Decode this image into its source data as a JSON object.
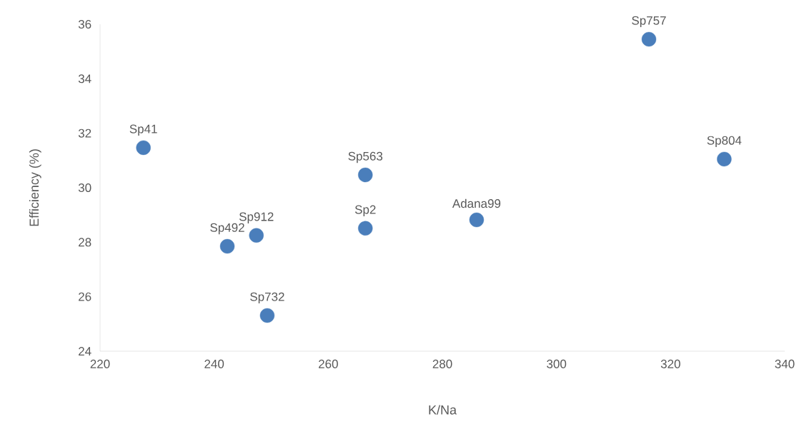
{
  "chart_data": {
    "type": "scatter",
    "xlabel": "K/Na",
    "ylabel": "Efficiency (%)",
    "x": [
      227.6,
      242.3,
      247.4,
      249.3,
      266.5,
      266.5,
      286.0,
      316.2,
      329.4
    ],
    "values": [
      31.47,
      27.85,
      28.25,
      25.31,
      28.51,
      30.47,
      28.82,
      35.45,
      31.05
    ],
    "color": "#4a7ebb",
    "marker": "circle",
    "xlim": [
      220,
      340
    ],
    "xticks": [
      220,
      240,
      260,
      280,
      300,
      320,
      340
    ],
    "ylim": [
      24,
      36
    ],
    "yticks": [
      24,
      26,
      28,
      30,
      32,
      34,
      36
    ],
    "annotations": [
      {
        "text": "Sp41",
        "x": 227.6,
        "y": 31.47
      },
      {
        "text": "Sp492",
        "x": 242.3,
        "y": 27.85
      },
      {
        "text": "Sp912",
        "x": 247.4,
        "y": 28.25
      },
      {
        "text": "Sp732",
        "x": 249.3,
        "y": 25.31
      },
      {
        "text": "Sp2",
        "x": 266.5,
        "y": 28.51
      },
      {
        "text": "Sp563",
        "x": 266.5,
        "y": 30.47
      },
      {
        "text": "Adana99",
        "x": 286.0,
        "y": 28.82
      },
      {
        "text": "Sp757",
        "x": 316.2,
        "y": 35.45
      },
      {
        "text": "Sp804",
        "x": 329.4,
        "y": 31.05
      }
    ]
  }
}
